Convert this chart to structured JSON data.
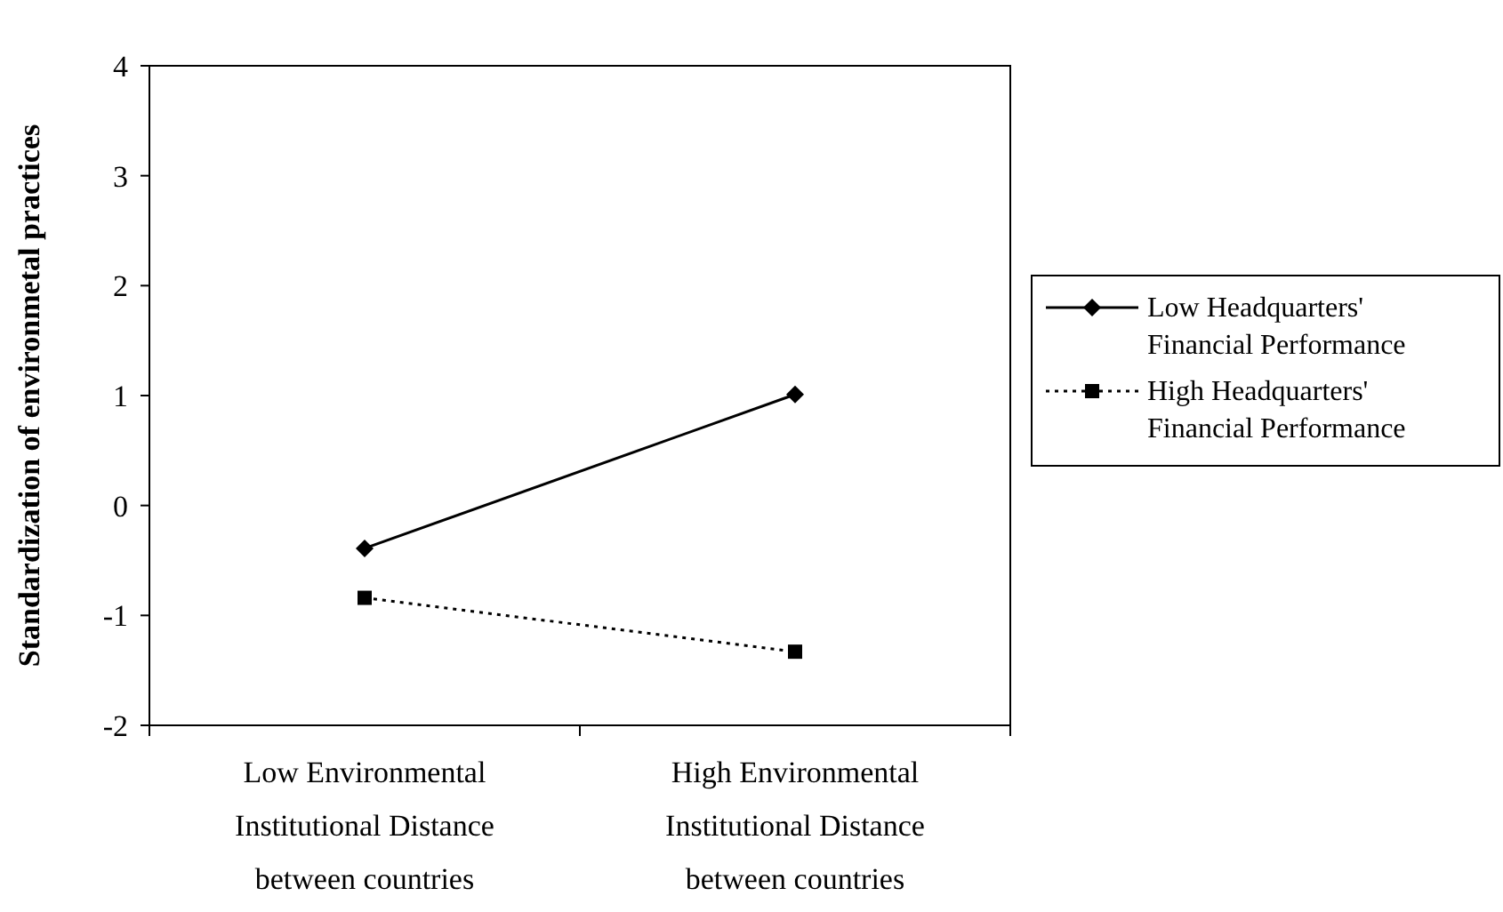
{
  "chart_data": {
    "type": "line",
    "ylabel": "Standardization of environmetal practices",
    "categories": [
      "Low Environmental Institutional Distance between countries",
      "High Environmental Institutional Distance between countries"
    ],
    "series": [
      {
        "name": "Low Headquarters' Financial Performance",
        "color": "#000000",
        "values": [
          -0.39,
          1.01
        ],
        "marker": "diamond",
        "line_style": "solid"
      },
      {
        "name": "High Headquarters' Financial Performance",
        "color": "#000000",
        "values": [
          -0.84,
          -1.33
        ],
        "marker": "square",
        "line_style": "dotted"
      }
    ],
    "ylim": [
      -2,
      4
    ],
    "yticks": [
      -2,
      -1,
      0,
      1,
      2,
      3,
      4
    ],
    "grid": false,
    "legend": "right"
  }
}
